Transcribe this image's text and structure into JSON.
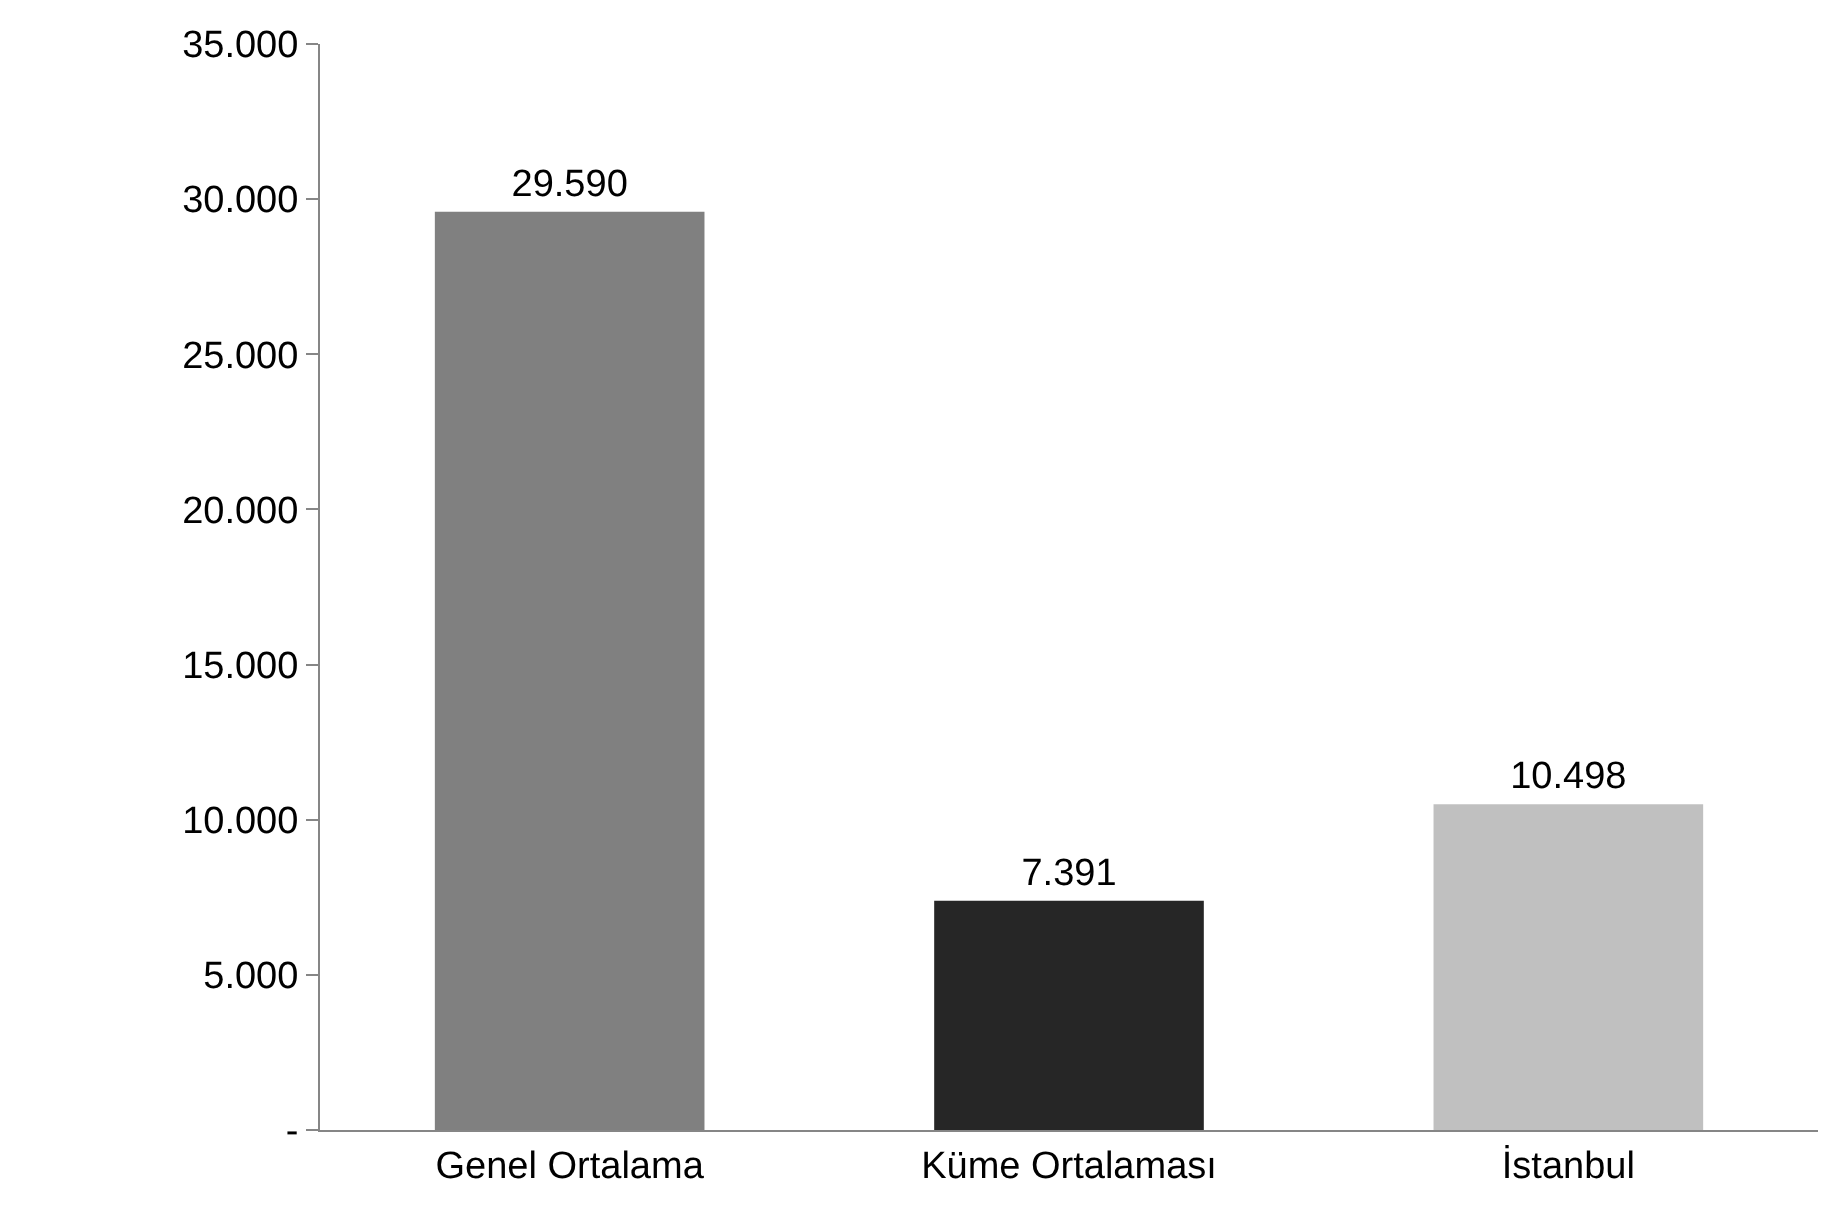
{
  "chart_data": {
    "type": "bar",
    "categories": [
      "Genel Ortalama",
      "Küme Ortalaması",
      "İstanbul"
    ],
    "values": [
      29590,
      7391,
      10498
    ],
    "colors": [
      "#808080",
      "#262626",
      "#c0c0c0"
    ],
    "value_labels": [
      "29.590",
      "7.391",
      "10.498"
    ],
    "ylim": [
      0,
      35000
    ],
    "yticks": [
      {
        "value": 0,
        "label": "-"
      },
      {
        "value": 5000,
        "label": "5.000"
      },
      {
        "value": 10000,
        "label": "10.000"
      },
      {
        "value": 15000,
        "label": "15.000"
      },
      {
        "value": 20000,
        "label": "20.000"
      },
      {
        "value": 25000,
        "label": "25.000"
      },
      {
        "value": 30000,
        "label": "30.000"
      },
      {
        "value": 35000,
        "label": "35.000"
      }
    ],
    "orientation": "vertical"
  }
}
